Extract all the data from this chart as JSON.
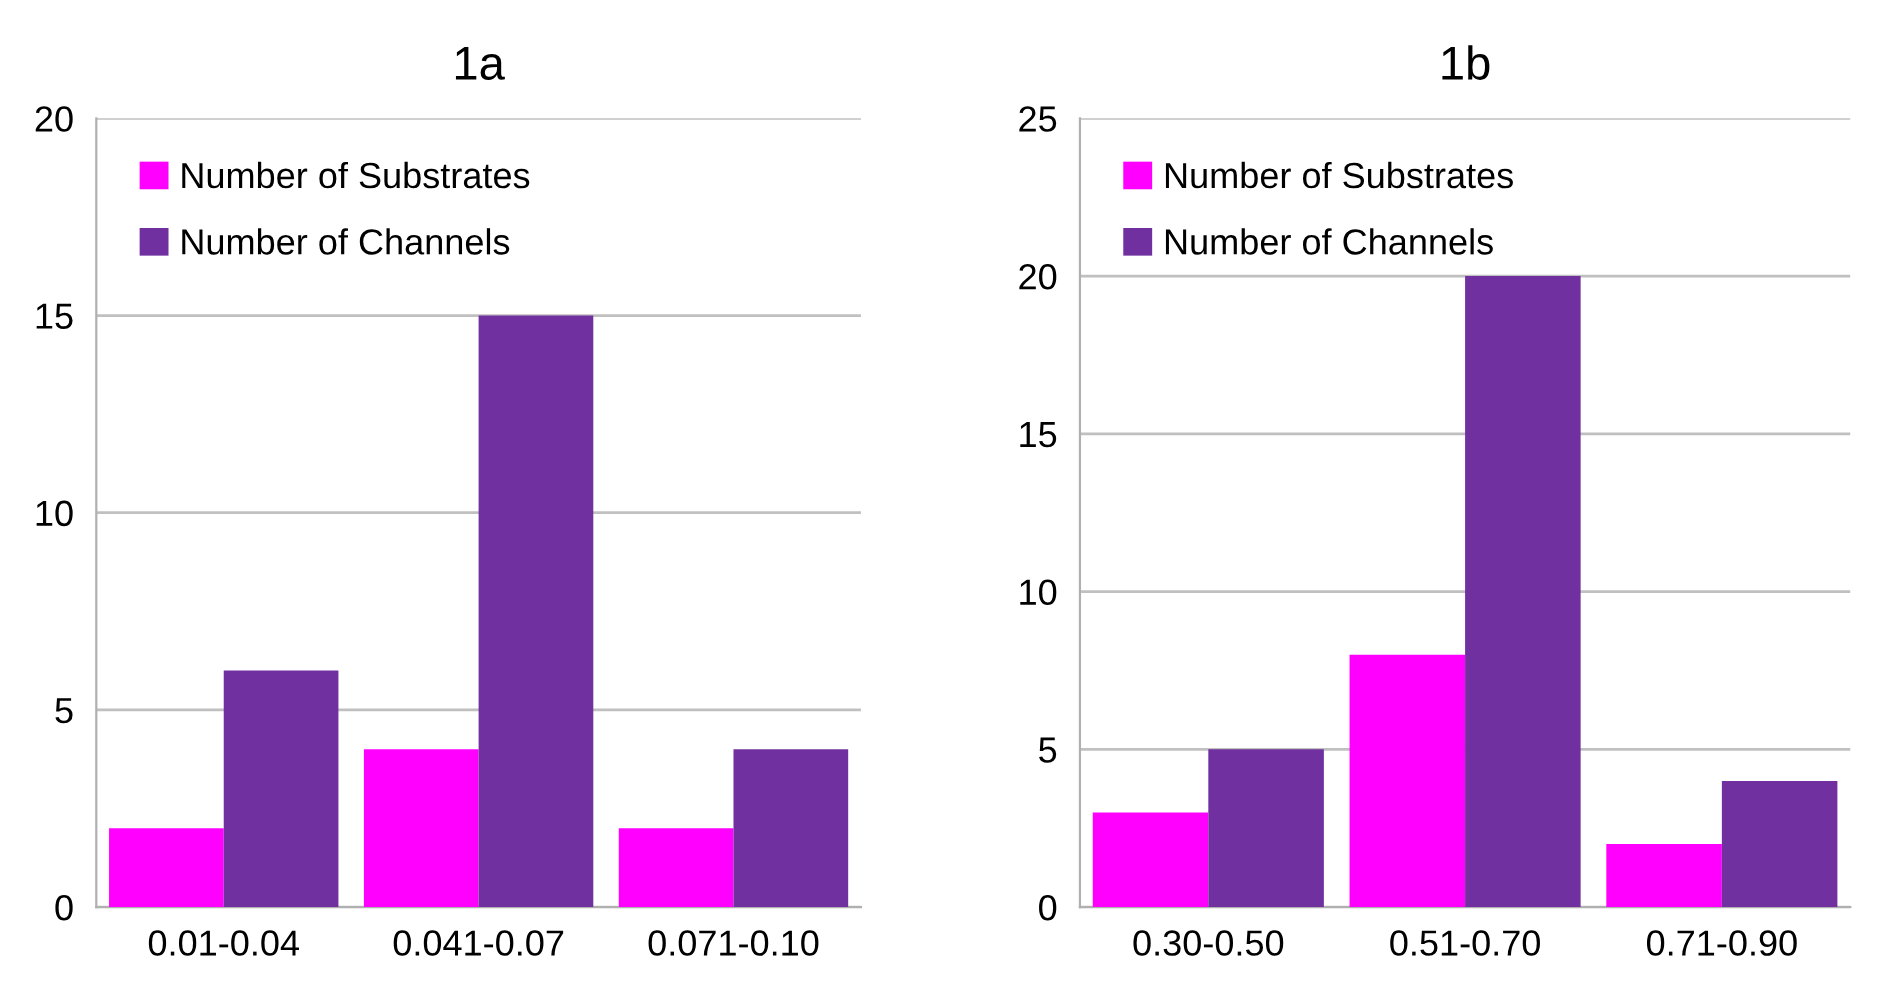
{
  "chart_data": [
    {
      "type": "bar",
      "title": "1a",
      "categories": [
        "0.01-0.04",
        "0.041-0.07",
        "0.071-0.10"
      ],
      "series": [
        {
          "name": "Number of Substrates",
          "color": "#ff00ff",
          "values": [
            2,
            4,
            2
          ]
        },
        {
          "name": "Number of Channels",
          "color": "#7030a0",
          "values": [
            6,
            15,
            4
          ]
        }
      ],
      "ylim": [
        0,
        20
      ],
      "yticks": [
        0,
        5,
        10,
        15,
        20
      ],
      "grid": "y",
      "legend": "top left"
    },
    {
      "type": "bar",
      "title": "1b",
      "categories": [
        "0.30-0.50",
        "0.51-0.70",
        "0.71-0.90"
      ],
      "series": [
        {
          "name": "Number of Substrates",
          "color": "#ff00ff",
          "values": [
            3,
            8,
            2
          ]
        },
        {
          "name": "Number of Channels",
          "color": "#7030a0",
          "values": [
            5,
            20,
            4
          ]
        }
      ],
      "ylim": [
        0,
        25
      ],
      "yticks": [
        0,
        5,
        10,
        15,
        20,
        25
      ],
      "grid": "y",
      "legend": "top left"
    }
  ]
}
